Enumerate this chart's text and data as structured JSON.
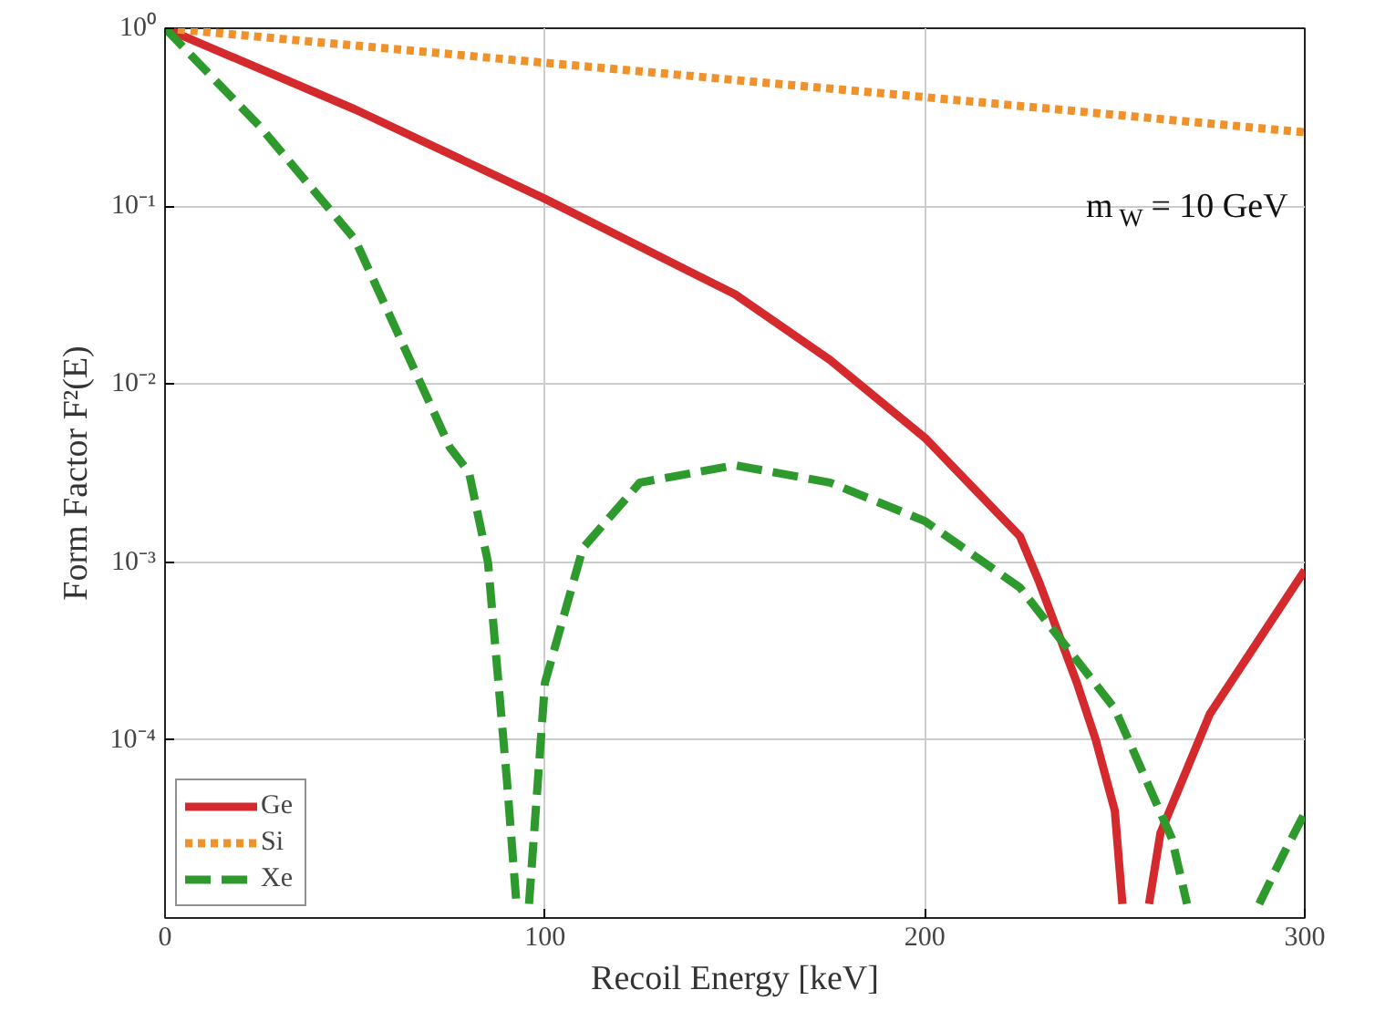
{
  "chart_data": {
    "type": "line",
    "xlabel": "Recoil Energy [keV]",
    "ylabel": "Form Factor F²(E)",
    "xlim": [
      0,
      300
    ],
    "xticks": [
      0,
      100,
      200,
      300
    ],
    "ylim": [
      1e-05,
      1
    ],
    "yticks": [
      {
        "value": 1,
        "label": "10⁰"
      },
      {
        "value": 0.1,
        "label": "10⁻¹"
      },
      {
        "value": 0.01,
        "label": "10⁻²"
      },
      {
        "value": 0.001,
        "label": "10⁻³"
      },
      {
        "value": 0.0001,
        "label": "10⁻⁴"
      }
    ],
    "log": "y",
    "grid": true,
    "legend": "bottom left",
    "annotations": [
      "m$_{W}$ = 10 GeV"
    ],
    "series": [
      {
        "name": "Ge",
        "color": "#d42a2e",
        "line_style": "solid",
        "x": [
          0,
          50,
          100,
          150,
          175,
          200,
          225,
          230,
          240,
          245,
          250,
          252,
          255,
          259,
          262,
          275,
          300
        ],
        "values": [
          1,
          0.35,
          0.11,
          0.032,
          0.0137,
          0.005,
          0.0014,
          0.00078,
          0.00021,
          0.0001,
          4e-05,
          1.2e-05,
          null,
          1.2e-05,
          3e-05,
          0.00014,
          0.0009
        ]
      },
      {
        "name": "Si",
        "color": "#f0922b",
        "line_style": "dotted",
        "x": [
          0,
          100,
          200,
          300
        ],
        "values": [
          1,
          0.64,
          0.41,
          0.26
        ]
      },
      {
        "name": "Xe",
        "color": "#2e9a2e",
        "line_style": "dashed",
        "x": [
          0,
          25,
          50,
          75,
          80,
          85,
          90,
          92.5,
          94,
          95.8,
          100,
          110,
          125,
          150,
          175,
          200,
          225,
          250,
          265,
          269,
          278,
          288,
          294,
          300
        ],
        "values": [
          1,
          0.28,
          0.065,
          0.0044,
          0.0032,
          0.001,
          5.9e-05,
          1.2e-05,
          null,
          1.2e-05,
          0.00021,
          0.0012,
          0.0028,
          0.0035,
          0.0028,
          0.0017,
          0.00072,
          0.00015,
          2.8e-05,
          1.2e-05,
          null,
          1.2e-05,
          2.2e-05,
          3.9e-05
        ]
      }
    ]
  }
}
